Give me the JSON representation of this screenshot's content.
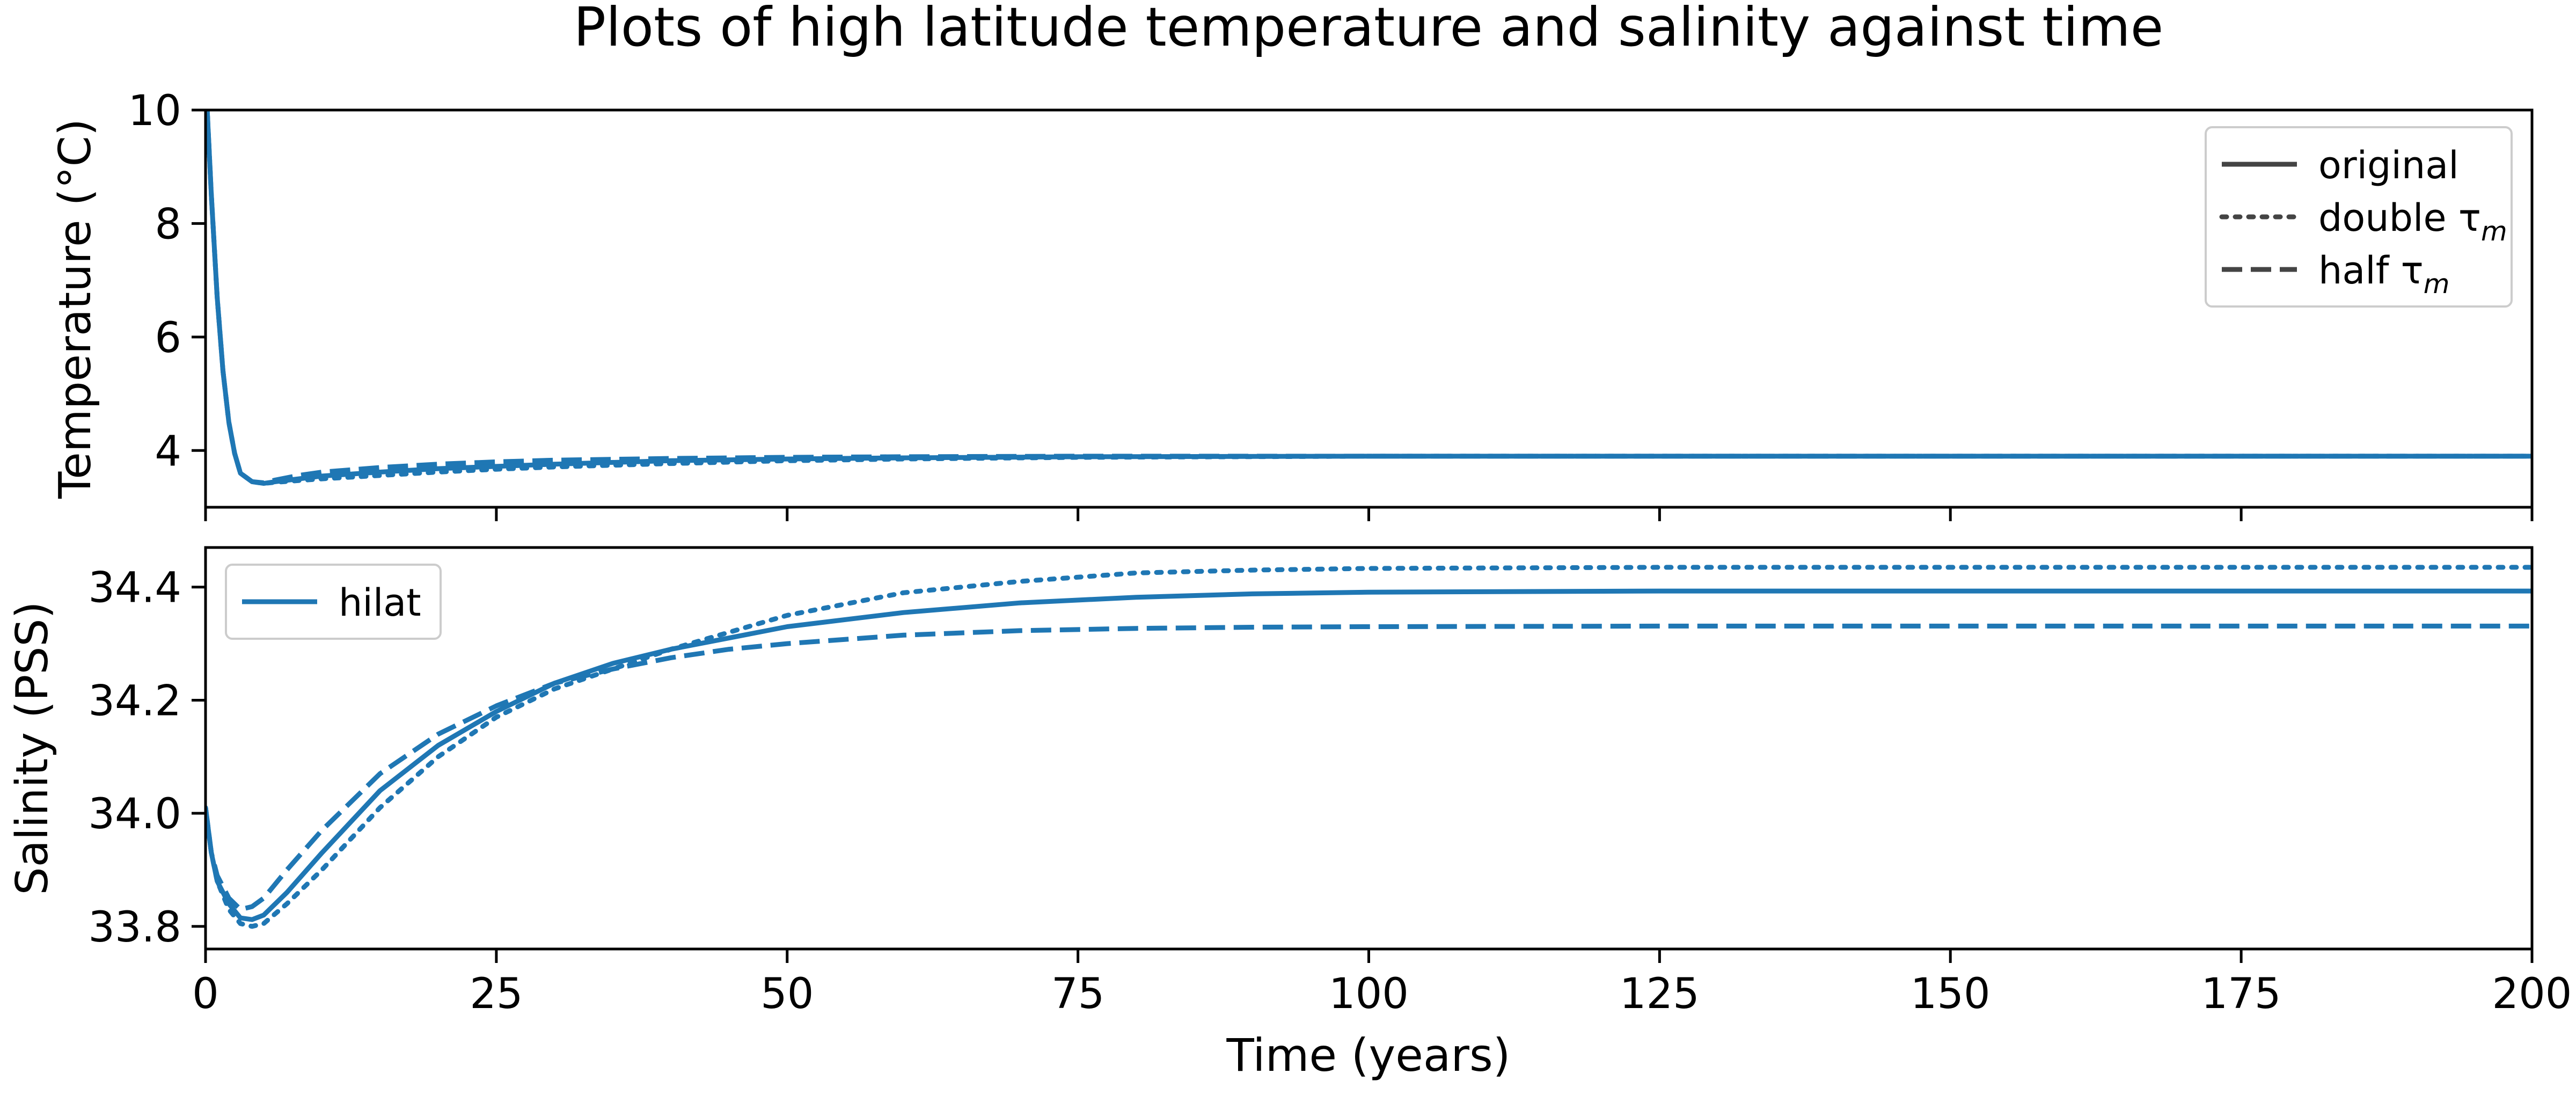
{
  "chart_data": {
    "title": "Plots of high latitude temperature and salinity against time",
    "xlabel": "Time (years)",
    "xlim": [
      0,
      200
    ],
    "xticks": [
      0,
      25,
      50,
      75,
      100,
      125,
      150,
      175,
      200
    ],
    "series_color": "#1f77b4",
    "legend_color": "#444444",
    "panels": [
      {
        "id": "temperature",
        "type": "line",
        "ylabel": "Temperature (°C)",
        "ylim": [
          3,
          10
        ],
        "yticks": [
          4,
          6,
          8,
          10
        ],
        "legend": {
          "placement": "top-right",
          "entries": [
            {
              "label": "original",
              "style": "solid"
            },
            {
              "label": "double τ",
              "sub": "m",
              "style": "dotted"
            },
            {
              "label": "half τ",
              "sub": "m",
              "style": "dashed"
            }
          ]
        },
        "series": [
          {
            "style": "solid",
            "x": [
              0,
              0.5,
              1,
              1.5,
              2,
              2.5,
              3,
              4,
              5,
              6,
              8,
              10,
              15,
              20,
              25,
              30,
              40,
              50,
              60,
              75,
              100,
              125,
              150,
              175,
              200
            ],
            "y": [
              10.6,
              8.5,
              6.7,
              5.4,
              4.5,
              3.95,
              3.6,
              3.45,
              3.42,
              3.45,
              3.5,
              3.55,
              3.62,
              3.68,
              3.72,
              3.76,
              3.82,
              3.85,
              3.87,
              3.89,
              3.9,
              3.9,
              3.9,
              3.9,
              3.9
            ]
          },
          {
            "style": "dotted",
            "x": [
              0,
              0.5,
              1,
              1.5,
              2,
              2.5,
              3,
              4,
              5,
              6,
              8,
              10,
              15,
              20,
              25,
              30,
              40,
              50,
              60,
              75,
              100,
              125,
              150,
              175,
              200
            ],
            "y": [
              10.6,
              8.5,
              6.7,
              5.4,
              4.5,
              3.95,
              3.6,
              3.45,
              3.42,
              3.44,
              3.47,
              3.5,
              3.56,
              3.62,
              3.67,
              3.71,
              3.77,
              3.82,
              3.85,
              3.88,
              3.9,
              3.9,
              3.9,
              3.9,
              3.9
            ]
          },
          {
            "style": "dashed",
            "x": [
              0,
              0.5,
              1,
              1.5,
              2,
              2.5,
              3,
              4,
              5,
              6,
              8,
              10,
              15,
              20,
              25,
              30,
              40,
              50,
              60,
              75,
              100,
              125,
              150,
              175,
              200
            ],
            "y": [
              10.6,
              8.5,
              6.7,
              5.4,
              4.5,
              3.95,
              3.6,
              3.45,
              3.43,
              3.48,
              3.56,
              3.62,
              3.7,
              3.76,
              3.8,
              3.83,
              3.86,
              3.88,
              3.89,
              3.9,
              3.9,
              3.9,
              3.9,
              3.9,
              3.9
            ]
          }
        ]
      },
      {
        "id": "salinity",
        "type": "line",
        "ylabel": "Salinity (PSS)",
        "ylim": [
          33.76,
          34.47
        ],
        "yticks": [
          33.8,
          34.0,
          34.2,
          34.4
        ],
        "ytick_labels": [
          "33.8",
          "34.0",
          "34.2",
          "34.4"
        ],
        "legend": {
          "placement": "top-left",
          "entries": [
            {
              "label": "hilat",
              "style": "solid"
            }
          ]
        },
        "series": [
          {
            "name": "hilat",
            "style": "solid",
            "x": [
              0,
              0.5,
              1,
              2,
              3,
              4,
              5,
              7,
              10,
              15,
              20,
              25,
              30,
              35,
              40,
              45,
              50,
              60,
              70,
              80,
              90,
              100,
              125,
              150,
              175,
              200
            ],
            "y": [
              34.01,
              33.93,
              33.88,
              33.84,
              33.815,
              33.812,
              33.82,
              33.86,
              33.93,
              34.04,
              34.12,
              34.18,
              34.23,
              34.265,
              34.29,
              34.31,
              34.33,
              34.355,
              34.372,
              34.382,
              34.388,
              34.391,
              34.393,
              34.393,
              34.393,
              34.393
            ]
          },
          {
            "style": "dotted",
            "x": [
              0,
              0.5,
              1,
              2,
              3,
              4,
              5,
              7,
              10,
              15,
              20,
              25,
              30,
              35,
              40,
              45,
              50,
              60,
              70,
              80,
              90,
              100,
              125,
              150,
              175,
              200
            ],
            "y": [
              34.01,
              33.93,
              33.88,
              33.83,
              33.805,
              33.8,
              33.805,
              33.84,
              33.9,
              34.01,
              34.1,
              34.17,
              34.22,
              34.255,
              34.29,
              34.32,
              34.35,
              34.39,
              34.41,
              34.425,
              34.43,
              34.433,
              34.435,
              34.435,
              34.435,
              34.435
            ]
          },
          {
            "style": "dashed",
            "x": [
              0,
              0.5,
              1,
              2,
              3,
              4,
              5,
              7,
              10,
              15,
              20,
              25,
              30,
              35,
              40,
              45,
              50,
              60,
              70,
              80,
              90,
              100,
              125,
              150,
              175,
              200
            ],
            "y": [
              34.01,
              33.93,
              33.89,
              33.85,
              33.83,
              33.835,
              33.85,
              33.9,
              33.97,
              34.07,
              34.14,
              34.19,
              34.23,
              34.255,
              34.275,
              34.29,
              34.3,
              34.315,
              34.323,
              34.327,
              34.329,
              34.33,
              34.331,
              34.331,
              34.331,
              34.331
            ]
          }
        ]
      }
    ]
  }
}
